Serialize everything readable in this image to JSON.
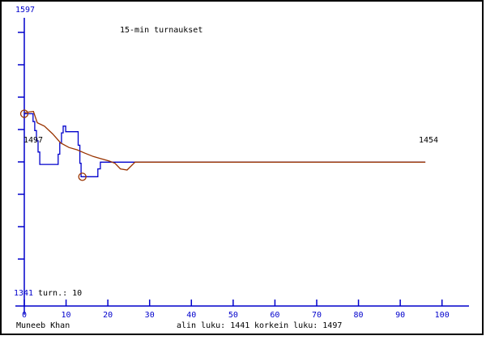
{
  "title": "15-min turnaukset",
  "labels": {
    "y_max": "1597",
    "y_min": "1341",
    "tournaments": "turn.: 10",
    "start_rating": "1497",
    "final_rating": "1454"
  },
  "footer": {
    "player_name": "Muneeb Khan",
    "lowest_text": "alin luku: 1441",
    "highest_text": "korkein luku: 1497"
  },
  "colors": {
    "blue": "#0000cc",
    "brown": "#993300",
    "black": "#000000",
    "background": "#ffffff",
    "border": "#000000"
  },
  "chart_data": {
    "type": "line",
    "title": "15-min turnaukset",
    "xlabel": "",
    "ylabel": "",
    "x_ticks": [
      0,
      10,
      20,
      30,
      40,
      50,
      60,
      70,
      80,
      90,
      100
    ],
    "x_range": [
      0,
      106
    ],
    "y_axis_top_value": 1597,
    "y_axis_bottom_value": 1341,
    "grid": false,
    "legend": false,
    "series": [
      {
        "name": "rating",
        "color_key": "blue",
        "points": [
          [
            0,
            1497
          ],
          [
            2.1,
            1497
          ],
          [
            2.1,
            1490
          ],
          [
            2.5,
            1490
          ],
          [
            2.5,
            1482
          ],
          [
            2.9,
            1482
          ],
          [
            2.9,
            1473
          ],
          [
            3.3,
            1473
          ],
          [
            3.3,
            1463
          ],
          [
            3.7,
            1463
          ],
          [
            3.7,
            1452
          ],
          [
            8.1,
            1452
          ],
          [
            8.1,
            1461
          ],
          [
            8.5,
            1461
          ],
          [
            8.5,
            1471
          ],
          [
            8.9,
            1471
          ],
          [
            8.9,
            1480
          ],
          [
            9.3,
            1480
          ],
          [
            9.3,
            1486
          ],
          [
            9.9,
            1486
          ],
          [
            9.9,
            1481
          ],
          [
            12.9,
            1481
          ],
          [
            12.9,
            1469
          ],
          [
            13.3,
            1469
          ],
          [
            13.3,
            1453
          ],
          [
            13.6,
            1453
          ],
          [
            13.6,
            1441
          ],
          [
            17.6,
            1441
          ],
          [
            17.6,
            1448
          ],
          [
            18.2,
            1448
          ],
          [
            18.2,
            1454
          ],
          [
            96,
            1454
          ]
        ]
      },
      {
        "name": "trend",
        "color_key": "brown",
        "points": [
          [
            0,
            1498
          ],
          [
            2.2,
            1499
          ],
          [
            3.1,
            1489
          ],
          [
            4.8,
            1486
          ],
          [
            6.8,
            1479
          ],
          [
            8.7,
            1471
          ],
          [
            10.7,
            1467
          ],
          [
            12.6,
            1465
          ],
          [
            14.5,
            1462
          ],
          [
            16.5,
            1459
          ],
          [
            18.4,
            1457
          ],
          [
            20.3,
            1455
          ],
          [
            21.7,
            1453
          ],
          [
            23,
            1448
          ],
          [
            24.6,
            1447
          ],
          [
            26.5,
            1454
          ],
          [
            96,
            1454
          ]
        ]
      }
    ],
    "markers": [
      {
        "x": 0,
        "y": 1497,
        "label": "start / highest"
      },
      {
        "x": 13.9,
        "y": 1441,
        "label": "lowest"
      }
    ],
    "stats": {
      "tournaments": 10,
      "lowest": 1441,
      "highest": 1497,
      "final": 1454
    }
  }
}
